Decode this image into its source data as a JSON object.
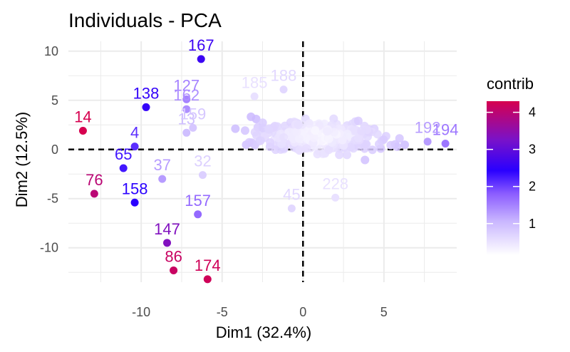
{
  "colors": {
    "contrib_low": "#ffffff",
    "contrib_mid1": "#c9b6ff",
    "contrib_mid2": "#8b5cff",
    "contrib_mid3": "#2a00ff",
    "contrib_mid4": "#7a12c8",
    "contrib_high": "#d6004f",
    "grid": "#ebebeb",
    "background": "#ffffff"
  },
  "chart_data": {
    "type": "scatter",
    "title": "Individuals - PCA",
    "xlabel": "Dim1 (32.4%)",
    "ylabel": "Dim2 (12.5%)",
    "xlim": [
      -14.5,
      9.5
    ],
    "ylim": [
      -13.5,
      11
    ],
    "x_ticks": [
      -10,
      -5,
      0,
      5
    ],
    "y_ticks": [
      -10,
      -5,
      0,
      5,
      10
    ],
    "grid": true,
    "reference_lines": {
      "x": 0,
      "y": 0,
      "style": "dashed"
    },
    "legend": {
      "title": "contrib",
      "position": "right",
      "ticks": [
        1,
        2,
        3,
        4
      ],
      "range": [
        0.15,
        4.3
      ]
    },
    "points": [
      {
        "label": "14",
        "x": -13.6,
        "y": 1.9,
        "contrib": 4.3
      },
      {
        "label": "76",
        "x": -12.9,
        "y": -4.5,
        "contrib": 3.9
      },
      {
        "label": "65",
        "x": -11.1,
        "y": -1.9,
        "contrib": 2.0
      },
      {
        "label": "4",
        "x": -10.4,
        "y": 0.3,
        "contrib": 1.9
      },
      {
        "label": "158",
        "x": -10.4,
        "y": -5.4,
        "contrib": 2.1
      },
      {
        "label": "138",
        "x": -9.7,
        "y": 4.3,
        "contrib": 2.2
      },
      {
        "label": "37",
        "x": -8.7,
        "y": -3.0,
        "contrib": 1.2
      },
      {
        "label": "147",
        "x": -8.4,
        "y": -9.5,
        "contrib": 3.1
      },
      {
        "label": "86",
        "x": -8.0,
        "y": -12.3,
        "contrib": 4.1
      },
      {
        "label": "13",
        "x": -7.2,
        "y": 1.7,
        "contrib": 0.9
      },
      {
        "label": "127",
        "x": -7.2,
        "y": 5.1,
        "contrib": 1.4
      },
      {
        "label": "162",
        "x": -7.2,
        "y": 4.1,
        "contrib": 1.3
      },
      {
        "label": "159",
        "x": -6.8,
        "y": 2.2,
        "contrib": 0.8
      },
      {
        "label": "157",
        "x": -6.5,
        "y": -6.6,
        "contrib": 1.6
      },
      {
        "label": "167",
        "x": -6.3,
        "y": 9.2,
        "contrib": 2.3
      },
      {
        "label": "174",
        "x": -5.9,
        "y": -13.2,
        "contrib": 4.2
      },
      {
        "label": "32",
        "x": -6.2,
        "y": -2.6,
        "contrib": 0.7
      },
      {
        "label": "188",
        "x": -1.2,
        "y": 6.1,
        "contrib": 0.6
      },
      {
        "label": "185",
        "x": -3.0,
        "y": 5.4,
        "contrib": 0.5
      },
      {
        "label": "45",
        "x": -0.7,
        "y": -6.0,
        "contrib": 0.6
      },
      {
        "label": "228",
        "x": 2.0,
        "y": -4.9,
        "contrib": 0.5
      },
      {
        "label": "194",
        "x": 8.8,
        "y": 0.6,
        "contrib": 1.5
      },
      {
        "label": "192",
        "x": 7.7,
        "y": 0.8,
        "contrib": 1.2
      }
    ]
  }
}
